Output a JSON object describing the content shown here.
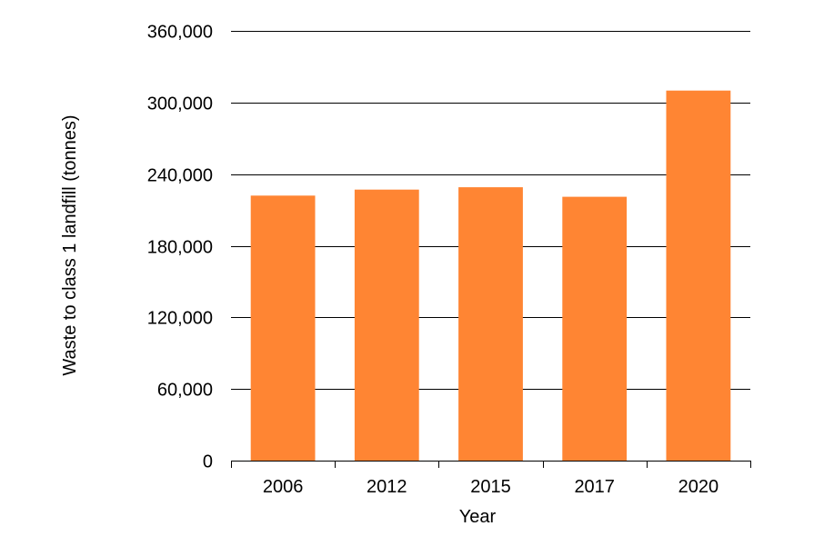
{
  "chart_data": {
    "type": "bar",
    "categories": [
      "2006",
      "2012",
      "2015",
      "2017",
      "2020"
    ],
    "values": [
      222000,
      227000,
      229000,
      221000,
      310000
    ],
    "xlabel": "Year",
    "ylabel": "Waste to class 1 landfill  (tonnes)",
    "ylim": [
      0,
      360000
    ],
    "yticks": [
      0,
      60000,
      120000,
      180000,
      240000,
      300000,
      360000
    ],
    "ytick_labels": [
      "0",
      "60,000",
      "120,000",
      "180,000",
      "240,000",
      "300,000",
      "360,000"
    ],
    "grid": true,
    "legend": "none",
    "bar_color": "#FF8533",
    "grid_color": "#000000"
  }
}
